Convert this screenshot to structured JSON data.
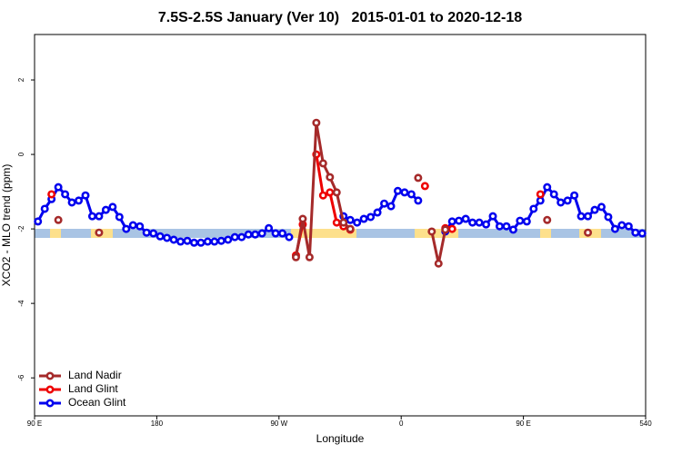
{
  "chart_data": {
    "type": "line",
    "title": "7.5S-2.5S January (Ver 10)   2015-01-01 to 2020-12-18",
    "x_label": "Longitude",
    "y_label": "XCO2 - MLO trend (ppm)",
    "xlim": [
      90,
      540
    ],
    "ylim": [
      -7.02,
      3.22
    ],
    "xticks": [
      {
        "value": 90,
        "label": "90 E"
      },
      180,
      {
        "value": 270,
        "label": "90 W"
      },
      {
        "value": 360,
        "label": "0"
      },
      {
        "value": 450,
        "label": "90 E"
      },
      540
    ],
    "yticks": [
      -6,
      -4,
      -2,
      0,
      2
    ],
    "legend": "bottom-left",
    "x": [
      92.5,
      97.5,
      102.5,
      107.5,
      112.5,
      117.5,
      122.5,
      127.5,
      132.5,
      137.5,
      142.5,
      147.5,
      152.5,
      157.5,
      162.5,
      167.5,
      172.5,
      177.5,
      182.5,
      187.5,
      192.5,
      197.5,
      202.5,
      207.5,
      212.5,
      217.5,
      222.5,
      227.5,
      232.5,
      237.5,
      242.5,
      247.5,
      252.5,
      257.5,
      262.5,
      267.5,
      272.5,
      277.5,
      282.5,
      287.5,
      292.5,
      297.5,
      302.5,
      307.5,
      312.5,
      317.5,
      322.5,
      327.5,
      332.5,
      337.5,
      342.5,
      347.5,
      352.5,
      357.5,
      362.5,
      367.5,
      372.5,
      377.5,
      382.5,
      387.5,
      392.5,
      397.5,
      402.5,
      407.5,
      412.5,
      417.5,
      422.5,
      427.5,
      432.5,
      437.5,
      442.5,
      447.5,
      452.5,
      457.5,
      462.5,
      467.5,
      472.5,
      477.5,
      482.5,
      487.5,
      492.5,
      497.5,
      502.5,
      507.5,
      512.5,
      517.5,
      522.5,
      527.5,
      532.5,
      537.5
    ],
    "series": [
      {
        "name": "Land Nadir",
        "color": "#a52a2a",
        "values": [
          null,
          null,
          null,
          -1.76,
          null,
          null,
          null,
          null,
          null,
          -2.1,
          null,
          null,
          null,
          null,
          null,
          null,
          null,
          null,
          null,
          null,
          null,
          null,
          null,
          null,
          null,
          null,
          null,
          null,
          null,
          null,
          null,
          null,
          null,
          null,
          null,
          null,
          null,
          null,
          -2.76,
          -1.73,
          -2.76,
          0.85,
          -0.24,
          -0.61,
          -1.02,
          -1.83,
          -2.0,
          null,
          null,
          null,
          null,
          null,
          null,
          null,
          null,
          null,
          -0.63,
          null,
          -2.07,
          -2.93,
          -2.02,
          null,
          null,
          null,
          null,
          null,
          null,
          null,
          null,
          null,
          null,
          null,
          null,
          null,
          null,
          -1.76,
          null,
          null,
          null,
          null,
          null,
          -2.1,
          null,
          null,
          null,
          null,
          null,
          null,
          null,
          null
        ]
      },
      {
        "name": "Land Glint",
        "color": "#ee0000",
        "values": [
          null,
          null,
          -1.07,
          null,
          null,
          null,
          null,
          null,
          null,
          null,
          null,
          null,
          null,
          null,
          null,
          null,
          null,
          null,
          null,
          null,
          null,
          null,
          null,
          null,
          null,
          null,
          null,
          null,
          null,
          null,
          null,
          null,
          null,
          null,
          null,
          null,
          null,
          null,
          -2.71,
          -1.88,
          null,
          0,
          -1.1,
          -1.02,
          -1.83,
          -1.93,
          -2.02,
          null,
          null,
          null,
          null,
          null,
          null,
          null,
          null,
          null,
          null,
          -0.85,
          null,
          null,
          -1.98,
          -2.0,
          null,
          null,
          null,
          null,
          null,
          null,
          null,
          null,
          null,
          null,
          null,
          null,
          -1.07,
          null,
          null,
          null,
          null,
          null,
          null,
          null,
          null,
          null,
          null,
          null,
          null,
          null,
          null,
          null
        ]
      },
      {
        "name": "Ocean Glint",
        "color": "#0000ee",
        "values": [
          -1.8,
          -1.46,
          -1.2,
          -0.88,
          -1.07,
          -1.29,
          -1.24,
          -1.1,
          -1.66,
          -1.66,
          -1.49,
          -1.41,
          -1.68,
          -2.0,
          -1.9,
          -1.93,
          -2.1,
          -2.12,
          -2.2,
          -2.24,
          -2.29,
          -2.34,
          -2.32,
          -2.37,
          -2.37,
          -2.34,
          -2.34,
          -2.32,
          -2.29,
          -2.22,
          -2.22,
          -2.15,
          -2.15,
          -2.12,
          -1.98,
          -2.12,
          -2.12,
          -2.22,
          null,
          null,
          null,
          null,
          null,
          null,
          null,
          -1.66,
          -1.76,
          -1.83,
          -1.73,
          -1.68,
          -1.56,
          -1.32,
          -1.39,
          -0.98,
          -1.02,
          -1.07,
          -1.24,
          null,
          null,
          null,
          -2.07,
          -1.8,
          -1.78,
          -1.73,
          -1.83,
          -1.83,
          -1.88,
          -1.66,
          -1.93,
          -1.93,
          -2.02,
          -1.78,
          -1.8,
          -1.46,
          -1.24,
          -0.88,
          -1.07,
          -1.29,
          -1.24,
          -1.1,
          -1.66,
          -1.66,
          -1.49,
          -1.41,
          -1.68,
          -2.0,
          -1.9,
          -1.93,
          -2.1,
          -2.12
        ]
      }
    ]
  }
}
